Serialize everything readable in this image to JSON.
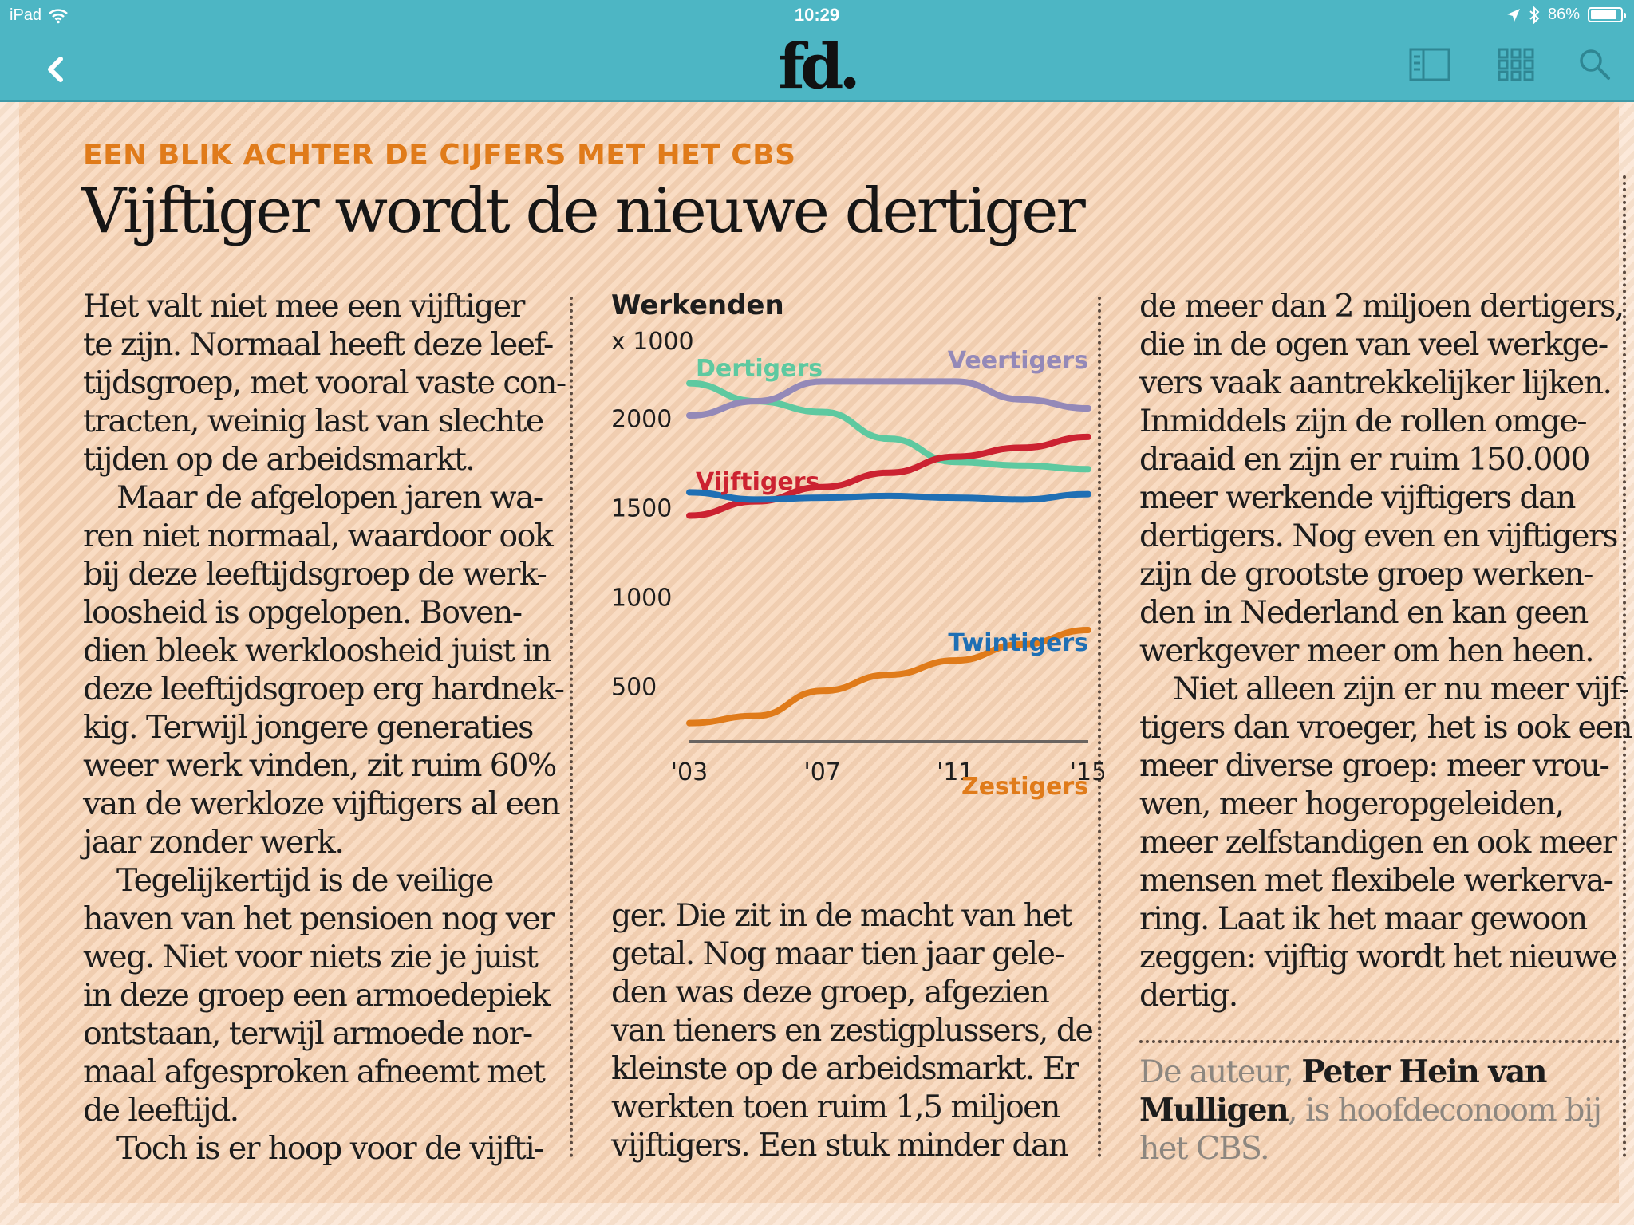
{
  "status_bar": {
    "device": "iPad",
    "time": "10:29",
    "battery": "86%",
    "battery_level": 0.86
  },
  "nav": {
    "logo": "fd.",
    "icons": [
      "back-chevron-icon",
      "sidebar-layout-icon",
      "grid-icon",
      "search-icon"
    ]
  },
  "article": {
    "kicker": "EEN BLIK ACHTER DE CIJFERS MET HET CBS",
    "title": "Vijftiger wordt de nieuwe dertiger",
    "col1": [
      "Het valt niet mee een vijftiger",
      "te zijn. Normaal heeft deze leef-",
      "tijdsgroep, met vooral vaste con-",
      "tracten, weinig last van slechte",
      "tijden op de arbeidsmarkt.",
      "Maar de afgelopen jaren wa-",
      "ren niet normaal, waardoor ook",
      "bij deze leeftijdsgroep de werk-",
      "loosheid is opgelopen. Boven-",
      "dien bleek werkloosheid juist in",
      "deze leeftijdsgroep erg hardnek-",
      "kig. Terwijl jongere generaties",
      "weer werk vinden, zit ruim 60%",
      "van de werkloze vijftigers al een",
      "jaar zonder werk.",
      "Tegelijkertijd is de veilige",
      "haven van het pensioen nog ver",
      "weg. Niet voor niets zie je juist",
      "in deze groep een armoedepiek",
      "ontstaan, terwijl armoede nor-",
      "maal afgesproken afneemt met",
      "de leeftijd.",
      "Toch is er hoop voor de vijfti-"
    ],
    "col2": [
      "ger. Die zit in de macht van het",
      "getal. Nog maar tien jaar gele-",
      "den was deze groep, afgezien",
      "van tieners en zestigplussers, de",
      "kleinste op de arbeidsmarkt. Er",
      "werkten toen ruim 1,5 miljoen",
      "vijftigers. Een stuk minder dan"
    ],
    "col3": [
      "de meer dan 2 miljoen dertigers,",
      "die in de ogen van veel werkge-",
      "vers vaak aantrekkelijker lijken.",
      "Inmiddels zijn de rollen omge-",
      "draaid en zijn er ruim 150.000",
      "meer werkende vijftigers dan",
      "dertigers. Nog even en vijftigers",
      "zijn de grootste groep werken-",
      "den in Nederland en kan geen",
      "werkgever meer om hen heen.",
      "Niet alleen zijn er nu meer vijf-",
      "tigers dan vroeger, het is ook een",
      "meer diverse groep: meer vrou-",
      "wen, meer hogeropgeleiden,",
      "meer zelfstandigen en ook meer",
      "mensen met flexibele werkerva-",
      "ring. Laat ik het maar gewoon",
      "zeggen: vijftig wordt het nieuwe",
      "dertig."
    ],
    "author": {
      "l1_pre": "De auteur, ",
      "l1_name": "Peter Hein van",
      "l2_name": "Mulligen",
      "l2_post": ", is hoofdeconoom bij",
      "l3": "het CBS."
    }
  },
  "chart_data": {
    "type": "line",
    "title": "Werkenden",
    "subtitle": "x 1000",
    "x": [
      2003,
      2005,
      2007,
      2009,
      2011,
      2013,
      2015
    ],
    "x_tick_labels": [
      "'03",
      "'07",
      "'11",
      "'15"
    ],
    "x_tick_values": [
      2003,
      2007,
      2011,
      2015
    ],
    "y_ticks": [
      500,
      1000,
      1500,
      2000
    ],
    "ylim": [
      150,
      2300
    ],
    "series": [
      {
        "name": "Dertigers",
        "color": "#5ec9a0",
        "values": [
          2190,
          2090,
          2030,
          1880,
          1750,
          1730,
          1710
        ]
      },
      {
        "name": "Veertigers",
        "color": "#9489b8",
        "values": [
          2010,
          2090,
          2200,
          2200,
          2200,
          2100,
          2050
        ]
      },
      {
        "name": "Vijftigers",
        "color": "#cc2231",
        "values": [
          1450,
          1530,
          1610,
          1690,
          1780,
          1830,
          1890
        ]
      },
      {
        "name": "Twintigers",
        "color": "#1f6fb4",
        "values": [
          1580,
          1540,
          1550,
          1560,
          1550,
          1540,
          1570
        ]
      },
      {
        "name": "Zestigers",
        "color": "#e07b1a",
        "values": [
          290,
          330,
          470,
          560,
          640,
          730,
          810
        ]
      }
    ]
  }
}
